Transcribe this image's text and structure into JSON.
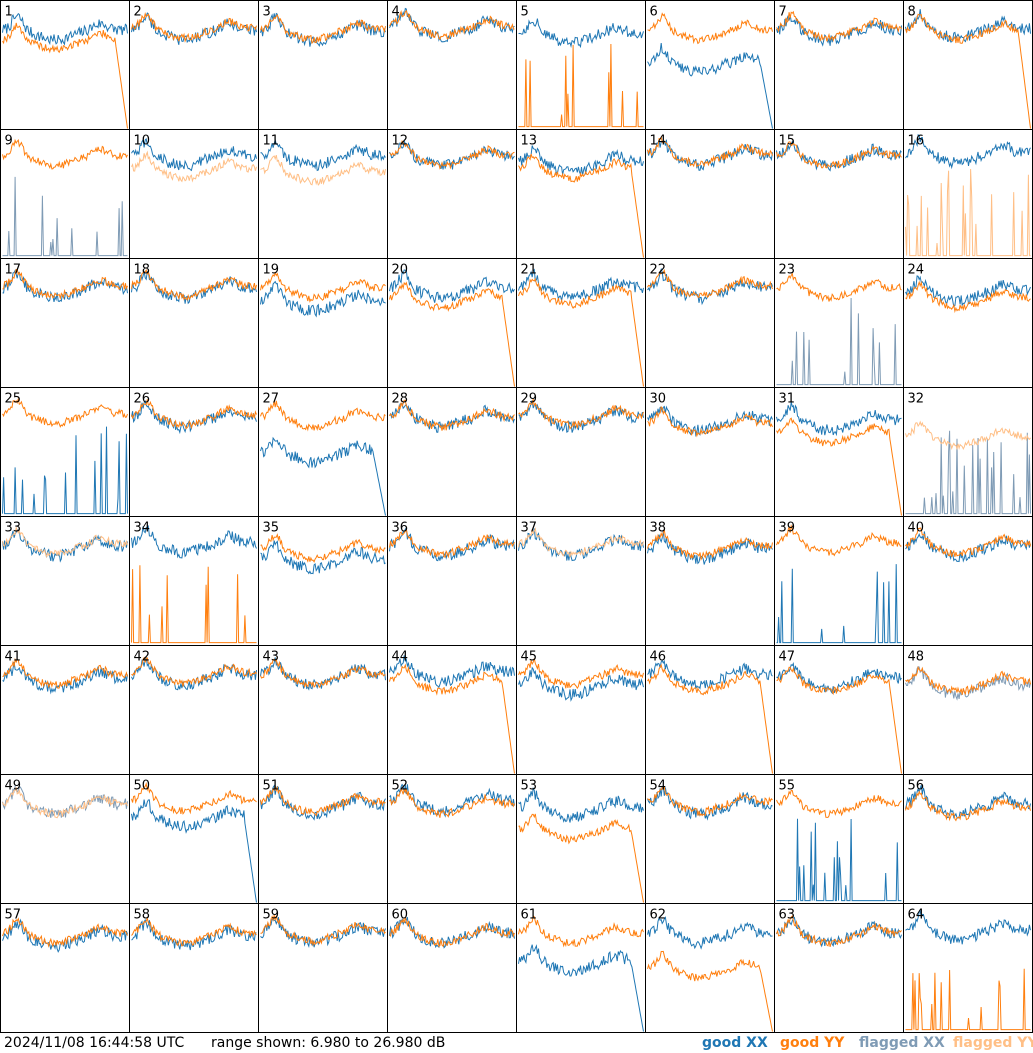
{
  "footer": {
    "timestamp": "2024/11/08 16:44:58 UTC",
    "range_label": "range shown: 6.980 to 26.980 dB"
  },
  "legend": [
    {
      "label": "good XX",
      "color": "#1f77b4"
    },
    {
      "label": "good YY",
      "color": "#ff7f0e"
    },
    {
      "label": "flagged XX",
      "color": "#7f9bb5"
    },
    {
      "label": "flagged YY",
      "color": "#ffbf86"
    }
  ],
  "chart_data": {
    "type": "line",
    "ylim": [
      6.98,
      26.98
    ],
    "grid": false,
    "panels": [
      {
        "label": "1",
        "xx": "good",
        "yy": "good",
        "xx_mean": 22.5,
        "yy_mean": 21.0,
        "yy_drop": true
      },
      {
        "label": "2",
        "xx": "good",
        "yy": "good",
        "xx_mean": 22.5,
        "yy_mean": 22.8
      },
      {
        "label": "3",
        "xx": "good",
        "yy": "good",
        "xx_mean": 22.3,
        "yy_mean": 22.6
      },
      {
        "label": "4",
        "xx": "good",
        "yy": "good",
        "xx_mean": 23.0,
        "yy_mean": 23.2
      },
      {
        "label": "5",
        "xx": "good",
        "yy": "good",
        "xx_mean": 22.0,
        "yy_mean": 7.5,
        "yy_spiky": true
      },
      {
        "label": "6",
        "xx": "good",
        "yy": "good",
        "xx_mean": 17.5,
        "yy_mean": 22.5,
        "xx_drop": true
      },
      {
        "label": "7",
        "xx": "good",
        "yy": "good",
        "xx_mean": 22.5,
        "yy_mean": 22.8
      },
      {
        "label": "8",
        "xx": "good",
        "yy": "good",
        "xx_mean": 22.8,
        "yy_mean": 22.5,
        "yy_drop": true
      },
      {
        "label": "9",
        "xx": "flagged",
        "yy": "good",
        "xx_mean": 8.0,
        "yy_mean": 23.0,
        "xx_spiky": true
      },
      {
        "label": "10",
        "xx": "good",
        "yy": "flagged",
        "xx_mean": 23.0,
        "yy_mean": 21.0
      },
      {
        "label": "11",
        "xx": "good",
        "yy": "flagged",
        "xx_mean": 23.0,
        "yy_mean": 20.5
      },
      {
        "label": "12",
        "xx": "good",
        "yy": "good",
        "xx_mean": 23.0,
        "yy_mean": 23.0
      },
      {
        "label": "13",
        "xx": "good",
        "yy": "good",
        "xx_mean": 22.0,
        "yy_mean": 21.0,
        "yy_drop": true
      },
      {
        "label": "14",
        "xx": "good",
        "yy": "good",
        "xx_mean": 23.2,
        "yy_mean": 23.4
      },
      {
        "label": "15",
        "xx": "good",
        "yy": "good",
        "xx_mean": 23.0,
        "yy_mean": 23.0
      },
      {
        "label": "16",
        "xx": "good",
        "yy": "flagged",
        "xx_mean": 23.5,
        "yy_mean": 7.2,
        "yy_spiky": true
      },
      {
        "label": "17",
        "xx": "good",
        "yy": "good",
        "xx_mean": 22.5,
        "yy_mean": 22.8
      },
      {
        "label": "18",
        "xx": "good",
        "yy": "good",
        "xx_mean": 22.5,
        "yy_mean": 22.8
      },
      {
        "label": "19",
        "xx": "good",
        "yy": "good",
        "xx_mean": 20.5,
        "yy_mean": 22.5
      },
      {
        "label": "20",
        "xx": "good",
        "yy": "good",
        "xx_mean": 22.5,
        "yy_mean": 21.0,
        "yy_drop": true
      },
      {
        "label": "21",
        "xx": "good",
        "yy": "good",
        "xx_mean": 22.5,
        "yy_mean": 21.5,
        "yy_drop": true
      },
      {
        "label": "22",
        "xx": "good",
        "yy": "good",
        "xx_mean": 22.5,
        "yy_mean": 22.8
      },
      {
        "label": "23",
        "xx": "flagged",
        "yy": "good",
        "xx_mean": 8.5,
        "yy_mean": 22.5,
        "xx_spiky": true
      },
      {
        "label": "24",
        "xx": "good",
        "yy": "good",
        "xx_mean": 22.0,
        "yy_mean": 21.0
      },
      {
        "label": "25",
        "xx": "good",
        "yy": "good",
        "xx_mean": 7.2,
        "yy_mean": 23.0,
        "xx_spiky": true
      },
      {
        "label": "26",
        "xx": "good",
        "yy": "good",
        "xx_mean": 22.5,
        "yy_mean": 22.8
      },
      {
        "label": "27",
        "xx": "good",
        "yy": "good",
        "xx_mean": 17.0,
        "yy_mean": 22.5,
        "xx_drop": true
      },
      {
        "label": "28",
        "xx": "good",
        "yy": "good",
        "xx_mean": 22.5,
        "yy_mean": 22.5
      },
      {
        "label": "29",
        "xx": "good",
        "yy": "good",
        "xx_mean": 22.5,
        "yy_mean": 22.8
      },
      {
        "label": "30",
        "xx": "good",
        "yy": "good",
        "xx_mean": 22.0,
        "yy_mean": 21.5
      },
      {
        "label": "31",
        "xx": "good",
        "yy": "good",
        "xx_mean": 22.0,
        "yy_mean": 20.0,
        "yy_drop": true
      },
      {
        "label": "32",
        "xx": "flagged",
        "yy": "flagged",
        "xx_mean": 7.2,
        "yy_mean": 19.5,
        "xx_spiky": true
      },
      {
        "label": "33",
        "xx": "good",
        "yy": "flagged",
        "xx_mean": 22.5,
        "yy_mean": 22.8
      },
      {
        "label": "34",
        "xx": "good",
        "yy": "good",
        "xx_mean": 23.0,
        "yy_mean": 8.5,
        "yy_spiky": true
      },
      {
        "label": "35",
        "xx": "good",
        "yy": "good",
        "xx_mean": 20.5,
        "yy_mean": 22.0
      },
      {
        "label": "36",
        "xx": "good",
        "yy": "good",
        "xx_mean": 22.5,
        "yy_mean": 22.8
      },
      {
        "label": "37",
        "xx": "good",
        "yy": "flagged",
        "xx_mean": 22.5,
        "yy_mean": 22.8
      },
      {
        "label": "38",
        "xx": "good",
        "yy": "good",
        "xx_mean": 22.0,
        "yy_mean": 22.5
      },
      {
        "label": "39",
        "xx": "good",
        "yy": "good",
        "xx_mean": 8.0,
        "yy_mean": 23.0,
        "xx_spiky": true
      },
      {
        "label": "40",
        "xx": "good",
        "yy": "good",
        "xx_mean": 22.5,
        "yy_mean": 22.8
      },
      {
        "label": "41",
        "xx": "good",
        "yy": "good",
        "xx_mean": 22.0,
        "yy_mean": 22.5
      },
      {
        "label": "42",
        "xx": "good",
        "yy": "good",
        "xx_mean": 22.5,
        "yy_mean": 22.8
      },
      {
        "label": "43",
        "xx": "good",
        "yy": "good",
        "xx_mean": 22.5,
        "yy_mean": 22.5
      },
      {
        "label": "44",
        "xx": "good",
        "yy": "good",
        "xx_mean": 23.0,
        "yy_mean": 21.5,
        "yy_drop": true
      },
      {
        "label": "45",
        "xx": "good",
        "yy": "good",
        "xx_mean": 21.0,
        "yy_mean": 22.5
      },
      {
        "label": "46",
        "xx": "good",
        "yy": "good",
        "xx_mean": 22.5,
        "yy_mean": 21.5,
        "yy_drop": true
      },
      {
        "label": "47",
        "xx": "good",
        "yy": "good",
        "xx_mean": 22.0,
        "yy_mean": 21.5,
        "yy_drop": true
      },
      {
        "label": "48",
        "xx": "flagged",
        "yy": "good",
        "xx_mean": 21.0,
        "yy_mean": 21.5
      },
      {
        "label": "49",
        "xx": "flagged",
        "yy": "flagged",
        "xx_mean": 22.5,
        "yy_mean": 22.5
      },
      {
        "label": "50",
        "xx": "good",
        "yy": "good",
        "xx_mean": 20.5,
        "yy_mean": 23.0,
        "xx_drop": true
      },
      {
        "label": "51",
        "xx": "good",
        "yy": "good",
        "xx_mean": 22.5,
        "yy_mean": 22.8
      },
      {
        "label": "52",
        "xx": "good",
        "yy": "good",
        "xx_mean": 23.0,
        "yy_mean": 22.5
      },
      {
        "label": "53",
        "xx": "good",
        "yy": "good",
        "xx_mean": 22.0,
        "yy_mean": 18.5,
        "yy_drop": true
      },
      {
        "label": "54",
        "xx": "good",
        "yy": "good",
        "xx_mean": 22.5,
        "yy_mean": 22.8
      },
      {
        "label": "55",
        "xx": "good",
        "yy": "good",
        "xx_mean": 8.5,
        "yy_mean": 22.5,
        "xx_spiky": true
      },
      {
        "label": "56",
        "xx": "good",
        "yy": "good",
        "xx_mean": 22.5,
        "yy_mean": 22.0
      },
      {
        "label": "57",
        "xx": "good",
        "yy": "good",
        "xx_mean": 22.0,
        "yy_mean": 22.5
      },
      {
        "label": "58",
        "xx": "good",
        "yy": "good",
        "xx_mean": 22.0,
        "yy_mean": 22.5
      },
      {
        "label": "59",
        "xx": "good",
        "yy": "good",
        "xx_mean": 22.5,
        "yy_mean": 22.8
      },
      {
        "label": "60",
        "xx": "good",
        "yy": "good",
        "xx_mean": 22.5,
        "yy_mean": 22.5
      },
      {
        "label": "61",
        "xx": "good",
        "yy": "good",
        "xx_mean": 18.0,
        "yy_mean": 22.5,
        "xx_drop": true
      },
      {
        "label": "62",
        "xx": "good",
        "yy": "good",
        "xx_mean": 22.5,
        "yy_mean": 17.0,
        "yy_drop": true
      },
      {
        "label": "63",
        "xx": "good",
        "yy": "good",
        "xx_mean": 22.5,
        "yy_mean": 22.5
      },
      {
        "label": "64",
        "xx": "good",
        "yy": "good",
        "xx_mean": 23.0,
        "yy_mean": 7.2,
        "yy_spiky": true
      }
    ]
  }
}
